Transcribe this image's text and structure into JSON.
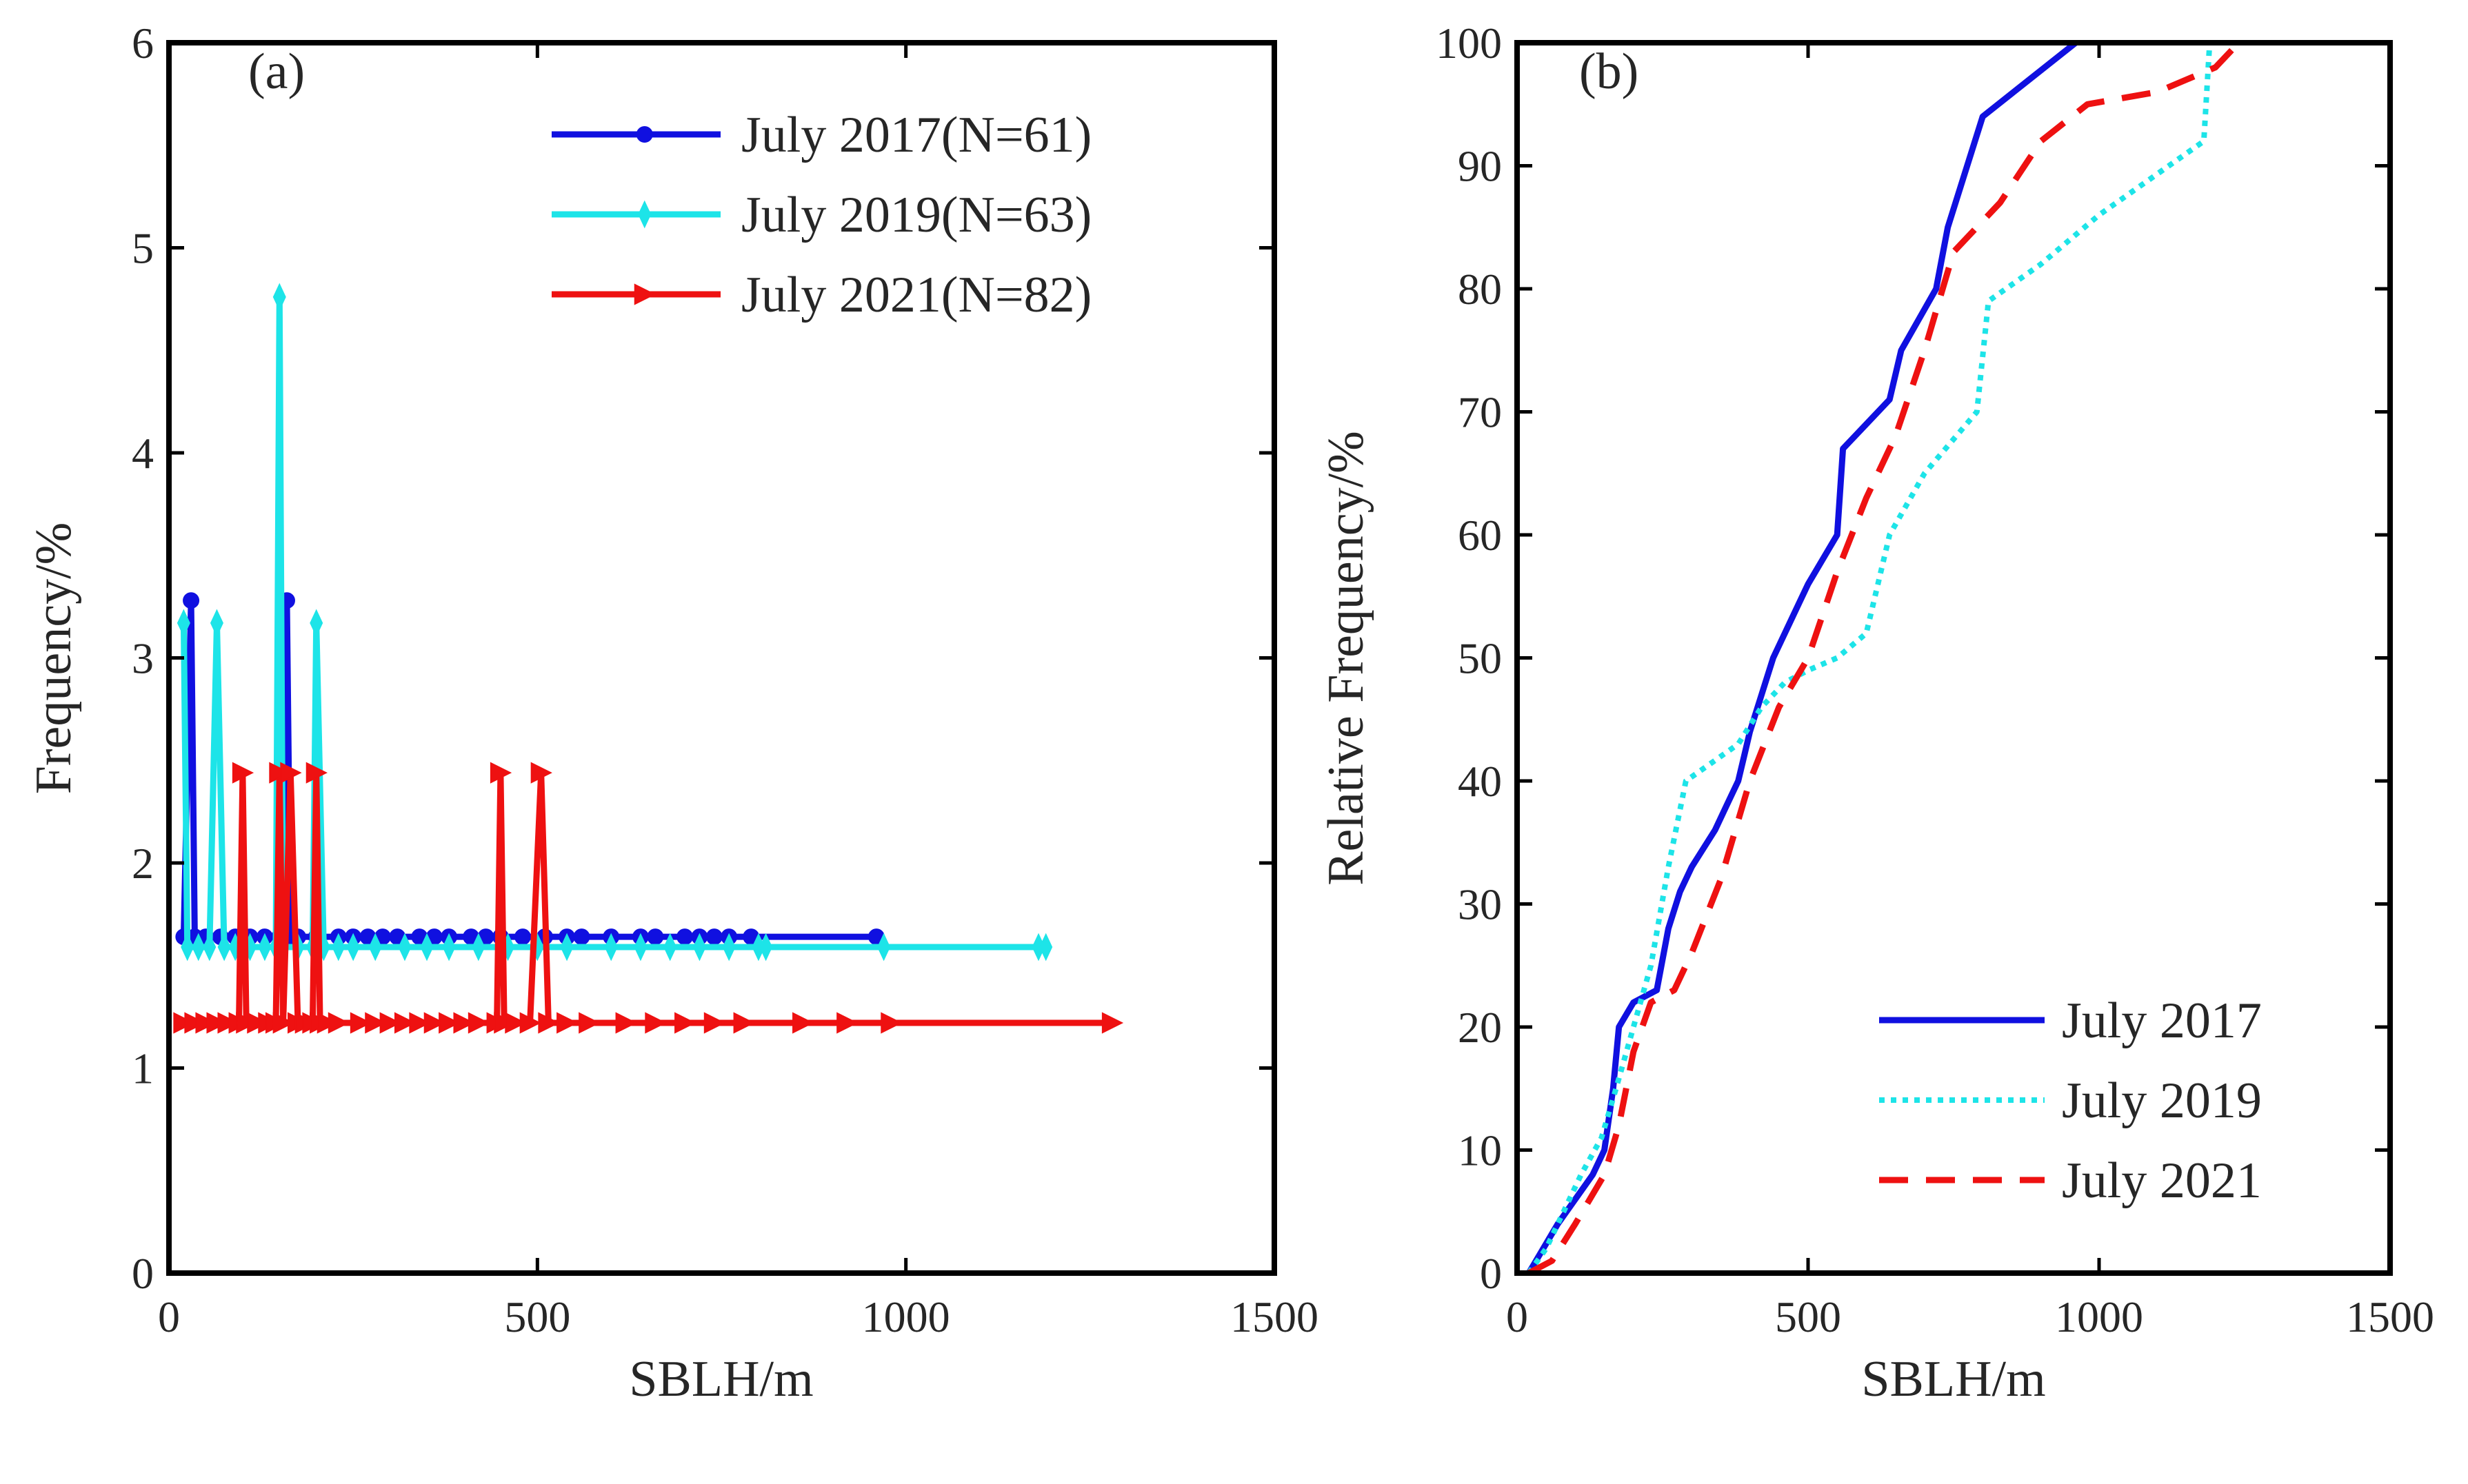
{
  "chart_data": [
    {
      "type": "line",
      "panel_label": "(a)",
      "xlabel": "SBLH/m",
      "ylabel": "Frequency/%",
      "xlim": [
        0,
        1500
      ],
      "ylim": [
        0,
        6
      ],
      "xticks": [
        "0",
        "500",
        "1000",
        "1500"
      ],
      "yticks": [
        "0",
        "1",
        "2",
        "3",
        "4",
        "5",
        "6"
      ],
      "legend_position": "top-right",
      "series": [
        {
          "name": "July 2017(N=61)",
          "color": "#1010e0",
          "marker": "circle",
          "x": [
            20,
            30,
            35,
            50,
            70,
            90,
            110,
            130,
            150,
            155,
            160,
            165,
            175,
            200,
            230,
            250,
            270,
            290,
            310,
            340,
            360,
            380,
            410,
            430,
            450,
            480,
            510,
            540,
            560,
            600,
            640,
            660,
            700,
            720,
            740,
            760,
            790,
            960
          ],
          "y": [
            1.64,
            3.28,
            1.64,
            1.64,
            1.64,
            1.64,
            1.64,
            1.64,
            1.64,
            1.64,
            3.28,
            1.64,
            1.64,
            1.64,
            1.64,
            1.64,
            1.64,
            1.64,
            1.64,
            1.64,
            1.64,
            1.64,
            1.64,
            1.64,
            1.64,
            1.64,
            1.64,
            1.64,
            1.64,
            1.64,
            1.64,
            1.64,
            1.64,
            1.64,
            1.64,
            1.64,
            1.64,
            1.64
          ]
        },
        {
          "name": "July 2019(N=63)",
          "color": "#1de4e8",
          "marker": "diamond",
          "x": [
            20,
            25,
            40,
            55,
            65,
            75,
            90,
            110,
            130,
            145,
            150,
            155,
            175,
            195,
            200,
            210,
            230,
            250,
            280,
            320,
            350,
            380,
            420,
            460,
            500,
            540,
            600,
            640,
            680,
            720,
            760,
            800,
            810,
            970,
            1180,
            1190
          ],
          "y": [
            3.17,
            1.59,
            1.59,
            1.59,
            3.17,
            1.59,
            1.59,
            1.59,
            1.59,
            1.59,
            4.76,
            1.59,
            1.59,
            1.59,
            3.17,
            1.59,
            1.59,
            1.59,
            1.59,
            1.59,
            1.59,
            1.59,
            1.59,
            1.59,
            1.59,
            1.59,
            1.59,
            1.59,
            1.59,
            1.59,
            1.59,
            1.59,
            1.59,
            1.59,
            1.59,
            1.59
          ]
        },
        {
          "name": "July 2021(N=82)",
          "color": "#ee1111",
          "marker": "triangle-right",
          "x": [
            20,
            35,
            50,
            65,
            80,
            95,
            100,
            105,
            120,
            135,
            145,
            150,
            155,
            165,
            175,
            185,
            195,
            200,
            205,
            215,
            230,
            260,
            280,
            300,
            320,
            340,
            360,
            380,
            400,
            420,
            445,
            450,
            455,
            470,
            490,
            505,
            515,
            540,
            570,
            620,
            660,
            700,
            740,
            780,
            860,
            920,
            980,
            1280
          ],
          "y": [
            1.22,
            1.22,
            1.22,
            1.22,
            1.22,
            1.22,
            2.44,
            1.22,
            1.22,
            1.22,
            1.22,
            2.44,
            1.22,
            2.44,
            1.22,
            1.22,
            1.22,
            2.44,
            1.22,
            1.22,
            1.22,
            1.22,
            1.22,
            1.22,
            1.22,
            1.22,
            1.22,
            1.22,
            1.22,
            1.22,
            1.22,
            2.44,
            1.22,
            1.22,
            1.22,
            2.44,
            1.22,
            1.22,
            1.22,
            1.22,
            1.22,
            1.22,
            1.22,
            1.22,
            1.22,
            1.22,
            1.22,
            1.22
          ]
        }
      ]
    },
    {
      "type": "line",
      "panel_label": "(b)",
      "xlabel": "SBLH/m",
      "ylabel": "Relative Frequency/%",
      "xlim": [
        0,
        1500
      ],
      "ylim": [
        0,
        100
      ],
      "xticks": [
        "0",
        "500",
        "1000",
        "1500"
      ],
      "yticks": [
        "0",
        "10",
        "20",
        "30",
        "40",
        "50",
        "60",
        "70",
        "80",
        "90",
        "100"
      ],
      "legend_position": "bottom-right",
      "series": [
        {
          "name": "July 2017",
          "color": "#1010e0",
          "linestyle": "solid",
          "x": [
            20,
            45,
            70,
            100,
            130,
            150,
            165,
            175,
            200,
            240,
            260,
            280,
            300,
            340,
            360,
            380,
            390,
            400,
            440,
            470,
            500,
            550,
            560,
            600,
            640,
            660,
            720,
            740,
            800,
            960
          ],
          "y": [
            0,
            2,
            4,
            6,
            8,
            10,
            15,
            20,
            22,
            23,
            28,
            31,
            33,
            36,
            38,
            40,
            42,
            44,
            50,
            53,
            56,
            60,
            67,
            69,
            71,
            75,
            80,
            85,
            94,
            100
          ]
        },
        {
          "name": "July 2019",
          "color": "#1de4e8",
          "linestyle": "dotted",
          "x": [
            20,
            50,
            80,
            110,
            145,
            170,
            200,
            230,
            260,
            290,
            320,
            380,
            420,
            460,
            500,
            550,
            600,
            640,
            700,
            790,
            810,
            900,
            1000,
            1180,
            1190
          ],
          "y": [
            0,
            2,
            5,
            8,
            11,
            15,
            20,
            25,
            33,
            40,
            41,
            43,
            46,
            48,
            49,
            50,
            52,
            60,
            65,
            70,
            79,
            82,
            86,
            92,
            100
          ]
        },
        {
          "name": "July 2021",
          "color": "#ee1111",
          "linestyle": "dashed",
          "x": [
            20,
            60,
            100,
            150,
            175,
            200,
            230,
            270,
            300,
            350,
            400,
            450,
            500,
            550,
            600,
            650,
            700,
            750,
            830,
            900,
            980,
            1100,
            1200,
            1240
          ],
          "y": [
            0,
            1,
            4,
            8,
            12,
            18,
            22,
            23,
            26,
            32,
            40,
            46,
            50,
            57,
            63,
            68,
            75,
            83,
            87,
            92,
            95,
            96,
            98,
            100
          ]
        }
      ]
    }
  ]
}
